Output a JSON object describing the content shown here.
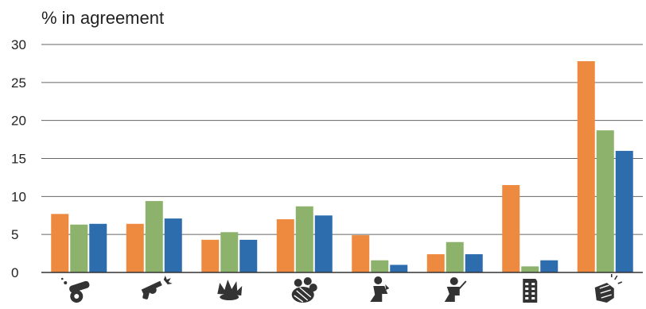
{
  "chart_data": {
    "type": "bar",
    "ylabel": "% in agreement",
    "ylim": [
      0,
      30
    ],
    "yticks": [
      0,
      5,
      10,
      15,
      20,
      25,
      30
    ],
    "grid": true,
    "categories": [
      "cannon-icon",
      "revolver-icon",
      "explosion-icon",
      "crowd-icon",
      "praying-person-icon",
      "person-with-weapon-icon",
      "building-icon",
      "fist-icon"
    ],
    "series": [
      {
        "color": "#ED8A3F",
        "values": [
          7.7,
          6.4,
          4.3,
          7.0,
          4.9,
          2.4,
          11.5,
          27.8
        ]
      },
      {
        "color": "#8DB26B",
        "values": [
          6.3,
          9.4,
          5.3,
          8.7,
          1.6,
          4.0,
          0.8,
          18.7
        ]
      },
      {
        "color": "#2D6DAE",
        "values": [
          6.4,
          7.1,
          4.3,
          7.5,
          1.0,
          2.4,
          1.6,
          16.0
        ]
      }
    ]
  }
}
